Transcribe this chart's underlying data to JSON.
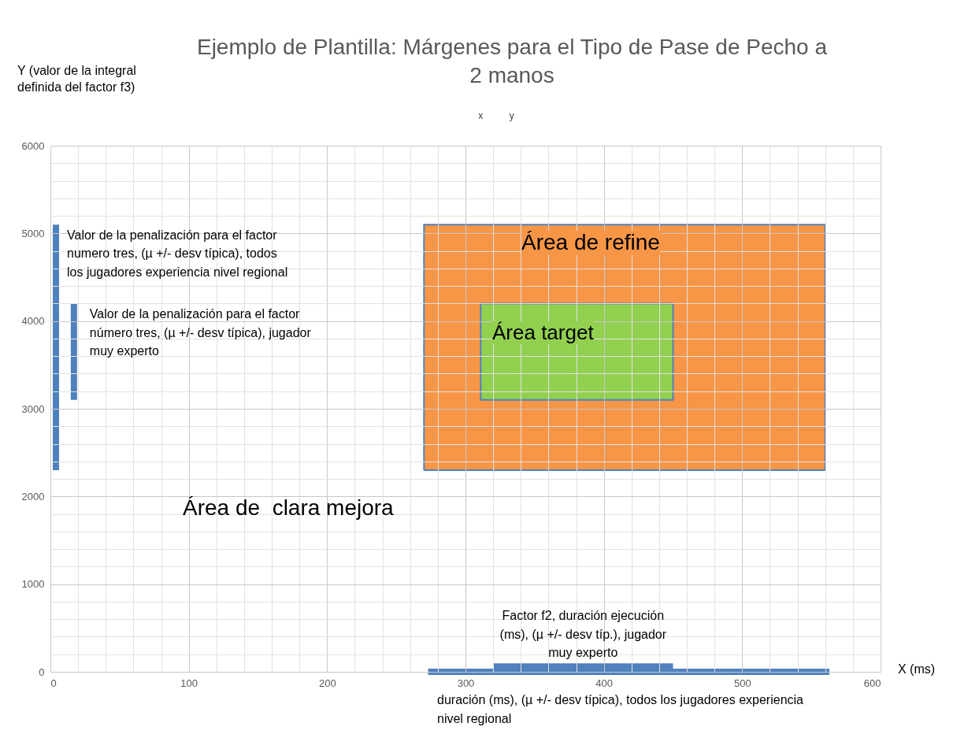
{
  "chart_data": {
    "type": "line",
    "title": "Ejemplo de Plantilla: Márgenes para el Tipo de Pase de Pecho a 2 manos",
    "subtitle": "x          y",
    "xlabel": "X (ms)",
    "ylabel": "Y (valor de la integral definida del factor f3)",
    "xlim": [
      0,
      600
    ],
    "ylim": [
      0,
      6000
    ],
    "xticks": [
      0,
      {
        "value": 20,
        "label": null
      },
      {
        "value": 40,
        "label": null
      },
      {
        "value": 60,
        "label": null
      },
      {
        "value": 80,
        "label": null
      },
      100,
      {
        "value": 120,
        "label": null
      },
      {
        "value": 140,
        "label": null
      },
      {
        "value": 160,
        "label": null
      },
      {
        "value": 180,
        "label": null
      },
      200,
      {
        "value": 220,
        "label": null
      },
      {
        "value": 240,
        "label": null
      },
      {
        "value": 260,
        "label": null
      },
      {
        "value": 280,
        "label": null
      },
      300,
      {
        "value": 320,
        "label": null
      },
      {
        "value": 340,
        "label": null
      },
      {
        "value": 360,
        "label": null
      },
      {
        "value": 380,
        "label": null
      },
      400,
      {
        "value": 420,
        "label": null
      },
      {
        "value": 440,
        "label": null
      },
      {
        "value": 460,
        "label": null
      },
      {
        "value": 480,
        "label": null
      },
      500,
      {
        "value": 520,
        "label": null
      },
      {
        "value": 540,
        "label": null
      },
      {
        "value": 560,
        "label": null
      },
      {
        "value": 580,
        "label": null
      },
      600
    ],
    "yticks": [
      0,
      {
        "value": 200,
        "label": null
      },
      {
        "value": 400,
        "label": null
      },
      {
        "value": 600,
        "label": null
      },
      {
        "value": 800,
        "label": null
      },
      1000,
      {
        "value": 1200,
        "label": null
      },
      {
        "value": 1400,
        "label": null
      },
      {
        "value": 1600,
        "label": null
      },
      {
        "value": 1800,
        "label": null
      },
      2000,
      {
        "value": 2200,
        "label": null
      },
      {
        "value": 2400,
        "label": null
      },
      {
        "value": 2600,
        "label": null
      },
      {
        "value": 2800,
        "label": null
      },
      3000,
      {
        "value": 3200,
        "label": null
      },
      {
        "value": 3400,
        "label": null
      },
      {
        "value": 3600,
        "label": null
      },
      {
        "value": 3800,
        "label": null
      },
      4000,
      {
        "value": 4200,
        "label": null
      },
      {
        "value": 4400,
        "label": null
      },
      {
        "value": 4600,
        "label": null
      },
      {
        "value": 4800,
        "label": null
      },
      5000,
      {
        "value": 5200,
        "label": null
      },
      {
        "value": 5400,
        "label": null
      },
      {
        "value": 5600,
        "label": null
      },
      {
        "value": 5800,
        "label": null
      },
      6000
    ],
    "grid": true,
    "series": [
      {
        "type": "area",
        "color": "#f79646",
        "x": [
          270,
          270,
          560,
          560,
          270
        ],
        "values": [
          2300,
          5100,
          5100,
          2300,
          2300
        ]
      },
      {
        "type": "area",
        "color": "#92d050",
        "x": [
          311,
          311,
          450,
          450,
          311
        ],
        "values": [
          3100,
          4200,
          4200,
          3100,
          3100
        ]
      },
      {
        "color": "#4f81bd",
        "x": [
          4,
          4
        ],
        "values": [
          2300,
          5100
        ]
      },
      {
        "color": "#4f81bd",
        "x": [
          17,
          17
        ],
        "values": [
          3100,
          4200
        ]
      },
      {
        "color": "#4f81bd",
        "x": [
          320,
          450
        ],
        "values": [
          60,
          60
        ]
      },
      {
        "color": "#4f81bd",
        "x": [
          273,
          563
        ],
        "values": [
          0,
          0
        ]
      }
    ],
    "annotations": [
      {
        "text": "Valor de la penalización para el factor numero tres, (µ +/- desv típica), todos los jugadores  experiencia nivel regional",
        "x": 4,
        "y": 5100
      },
      {
        "text": "Valor de la penalización para el factor número tres, (µ +/- desv típica), jugador muy experto",
        "x": 17,
        "y": 4200
      },
      {
        "text": "Factor f2, duración ejecución (ms), (µ +/- desv típ.), jugador muy experto",
        "x": 385,
        "y": 60
      },
      "Área de refine",
      "Área target",
      "Área de  clara mejora",
      "duración (ms), (µ +/- desv típica), todos los jugadores experiencia nivel regional"
    ]
  }
}
